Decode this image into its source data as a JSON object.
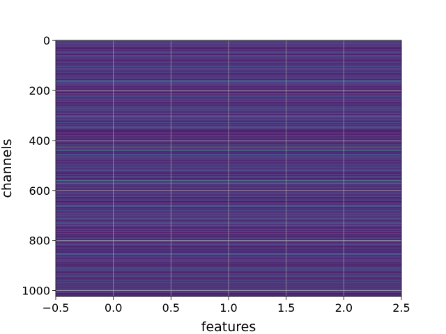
{
  "chart_data": {
    "type": "heatmap",
    "title": "",
    "xlabel": "features",
    "ylabel": "channels",
    "xlim": [
      -0.5,
      2.5
    ],
    "ylim": [
      1023.5,
      -0.5
    ],
    "y_inverted": true,
    "colormap": "viridis",
    "grid": true,
    "rows": 1024,
    "columns": 3,
    "x_ticks": [
      {
        "value": -0.5,
        "label": "−0.5"
      },
      {
        "value": 0.0,
        "label": "0.0"
      },
      {
        "value": 0.5,
        "label": "0.5"
      },
      {
        "value": 1.0,
        "label": "1.0"
      },
      {
        "value": 1.5,
        "label": "1.5"
      },
      {
        "value": 2.0,
        "label": "2.0"
      },
      {
        "value": 2.5,
        "label": "2.5"
      }
    ],
    "y_ticks": [
      {
        "value": 0,
        "label": "0"
      },
      {
        "value": 200,
        "label": "200"
      },
      {
        "value": 400,
        "label": "400"
      },
      {
        "value": 600,
        "label": "600"
      },
      {
        "value": 800,
        "label": "800"
      },
      {
        "value": 1000,
        "label": "1000"
      }
    ],
    "highlight_channels": [
      {
        "channel": 16,
        "level": 0.45
      },
      {
        "channel": 160,
        "level": 0.55
      },
      {
        "channel": 180,
        "level": 0.5
      },
      {
        "channel": 270,
        "level": 0.6
      },
      {
        "channel": 290,
        "level": 0.5
      },
      {
        "channel": 425,
        "level": 0.75
      },
      {
        "channel": 440,
        "level": 0.7
      },
      {
        "channel": 560,
        "level": 0.7
      },
      {
        "channel": 565,
        "level": 0.6
      },
      {
        "channel": 740,
        "level": 0.55
      },
      {
        "channel": 885,
        "level": 0.55
      },
      {
        "channel": 960,
        "level": 0.5
      }
    ]
  }
}
